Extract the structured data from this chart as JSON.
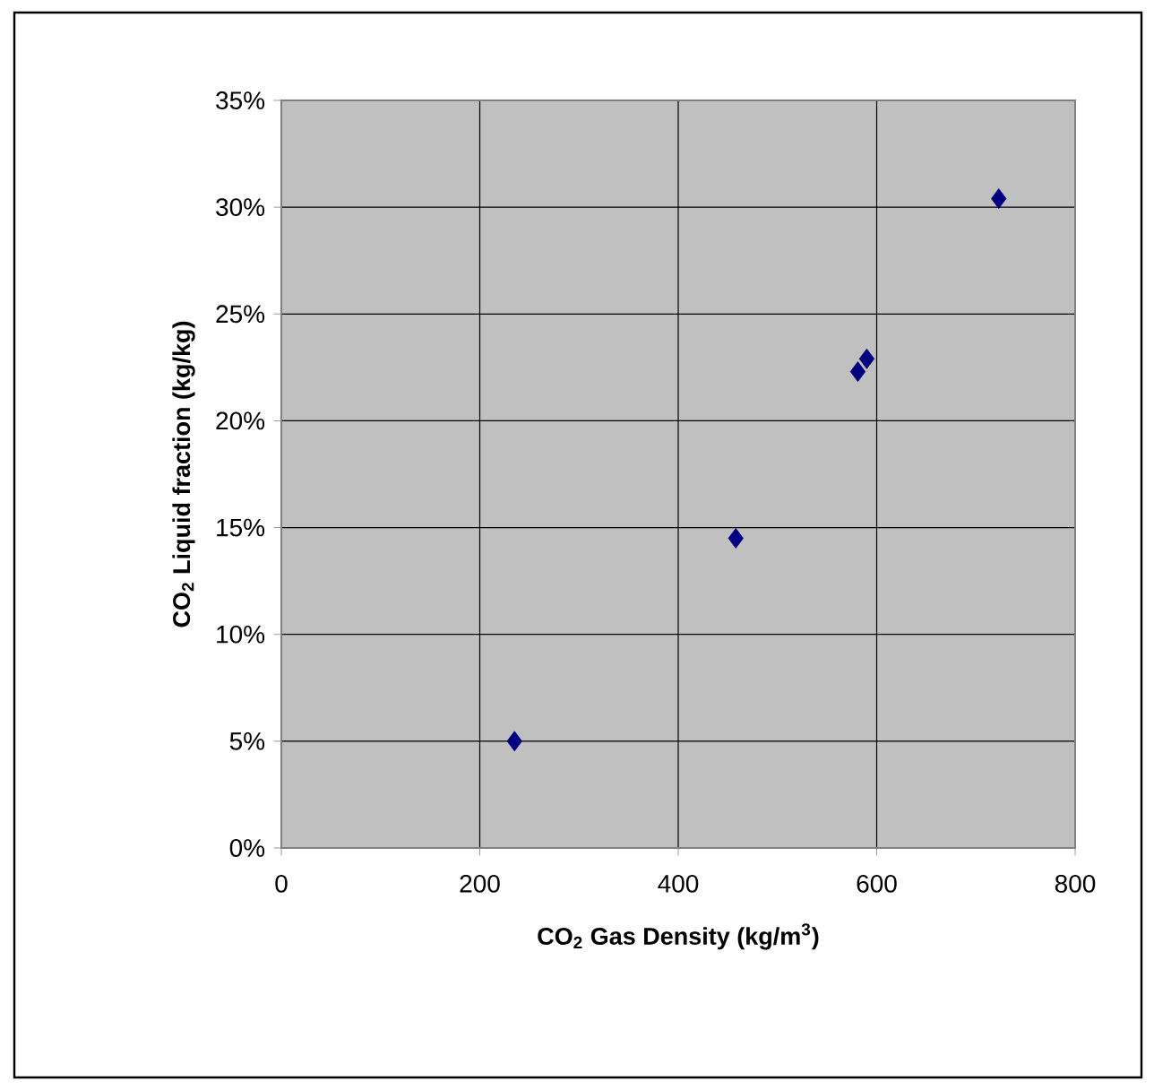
{
  "chart_data": {
    "type": "scatter",
    "xlabel": "CO$_{2}$ Gas Density  (kg/m$^{3}$)",
    "ylabel": "CO$_{2}$ Liquid fraction  (kg/kg)",
    "x": [
      235,
      458,
      581,
      590,
      723
    ],
    "series": [
      {
        "color": "#000080",
        "values": [
          5.0,
          14.5,
          22.3,
          22.9,
          30.4
        ]
      }
    ],
    "xlim": [
      0,
      800
    ],
    "xticks": [
      0,
      200,
      400,
      600,
      800
    ],
    "ylim": [
      0,
      35
    ],
    "yticks": [
      {
        "value": 0,
        "label": "0%"
      },
      {
        "value": 5,
        "label": "5%"
      },
      {
        "value": 10,
        "label": "10%"
      },
      {
        "value": 15,
        "label": "15%"
      },
      {
        "value": 20,
        "label": "20%"
      },
      {
        "value": 25,
        "label": "25%"
      },
      {
        "value": 30,
        "label": "30%"
      },
      {
        "value": 35,
        "label": "35%"
      }
    ],
    "grid": true,
    "legend": false,
    "marker": "diamond",
    "line_style": "none"
  }
}
